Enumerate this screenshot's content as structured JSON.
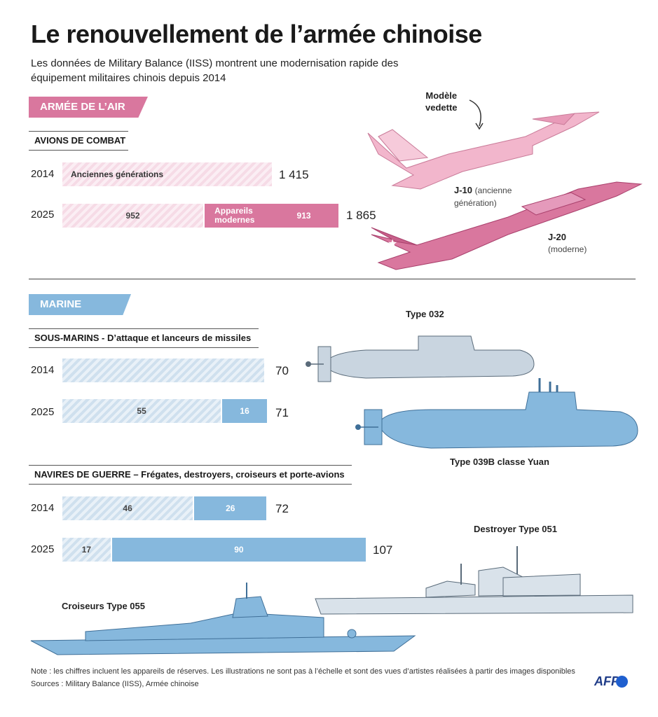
{
  "title": "Le renouvellement de l’armée chinoise",
  "subtitle": "Les données de Military Balance (IISS) montrent une modernisation rapide des équipement militaires chinois depuis 2014",
  "sections": {
    "air": {
      "tag": "ARMÉE DE L’AIR",
      "illustrations": {
        "featured_label_line1": "Modèle",
        "featured_label_line2": "vedette",
        "j10_name": "J-10",
        "j10_desc_line1": "(ancienne",
        "j10_desc_line2": "génération)",
        "j20_name": "J-20",
        "j20_desc": "(moderne)"
      }
    },
    "marine": {
      "tag": "MARINE",
      "illustrations": {
        "sub1": "Type 032",
        "sub2": "Type 039B classe Yuan",
        "ship1": "Destroyer Type 051",
        "ship2": "Croiseurs Type 055"
      }
    }
  },
  "colors": {
    "air_modern": "#d9779e",
    "air_old": "#f6dbe6",
    "marine_modern": "#86b8dd",
    "marine_old": "#cfe0ee"
  },
  "chart_data": [
    {
      "type": "bar",
      "title": "AVIONS DE COMBAT",
      "categories": [
        "2014",
        "2025"
      ],
      "series": [
        {
          "name": "Anciennes générations",
          "values": [
            1415,
            952
          ],
          "labels": [
            "Anciennes générations",
            "952"
          ]
        },
        {
          "name": "Appareils modernes",
          "values": [
            0,
            913
          ],
          "labels": [
            "",
            "913"
          ]
        }
      ],
      "modern_label": "Appareils modernes",
      "totals": [
        "1 415",
        "1 865"
      ],
      "scale_max": 1865
    },
    {
      "type": "bar",
      "title": "SOUS-MARINS - D’attaque et lanceurs de missiles",
      "categories": [
        "2014",
        "2025"
      ],
      "series": [
        {
          "values": [
            70,
            55
          ],
          "labels": [
            "",
            "55"
          ]
        },
        {
          "values": [
            0,
            16
          ],
          "labels": [
            "",
            "16"
          ]
        }
      ],
      "totals": [
        "70",
        "71"
      ]
    },
    {
      "type": "bar",
      "title": "NAVIRES DE GUERRE – Frégates, destroyers, croiseurs et porte-avions",
      "categories": [
        "2014",
        "2025"
      ],
      "series": [
        {
          "values": [
            46,
            17
          ],
          "labels": [
            "46",
            "17"
          ]
        },
        {
          "values": [
            26,
            90
          ],
          "labels": [
            "26",
            "90"
          ]
        }
      ],
      "totals": [
        "72",
        "107"
      ]
    }
  ],
  "footer": {
    "note": "Note : les chiffres incluent les appareils de réserves. Les illustrations ne sont pas à l’échelle et sont des vues d’artistes réalisées à partir des images disponibles",
    "sources": "Sources : Military Balance (IISS), Armée chinoise",
    "logo": "AFP"
  }
}
